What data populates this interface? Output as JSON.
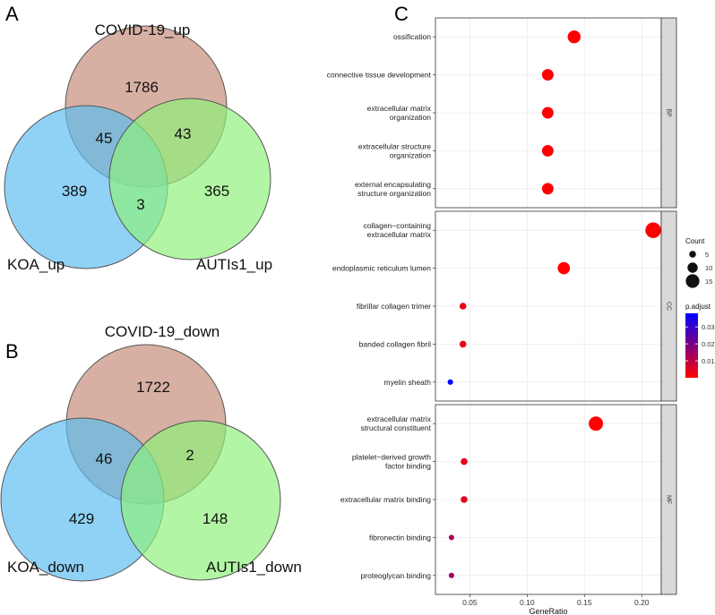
{
  "panels": {
    "a": "A",
    "b": "B",
    "c": "C"
  },
  "venn_a": {
    "sets": {
      "top": "COVID-19_up",
      "left": "KOA_up",
      "right": "AUTIs1_up"
    },
    "regions": {
      "top_only": "1786",
      "top_left": "45",
      "top_right": "43",
      "left_only": "389",
      "center": "3",
      "right_only": "365"
    },
    "colors": {
      "top": "#c48a78",
      "left": "#5bbcf0",
      "right": "#8ef27a"
    }
  },
  "venn_b": {
    "sets": {
      "top": "COVID-19_down",
      "left": "KOA_down",
      "right": "AUTIs1_down"
    },
    "regions": {
      "top_only": "1722",
      "top_left": "46",
      "top_right": "2",
      "left_only": "429",
      "center": "",
      "right_only": "148"
    },
    "colors": {
      "top": "#c48a78",
      "left": "#5bbcf0",
      "right": "#8ef27a"
    }
  },
  "chart_data": {
    "type": "scatter",
    "title": "",
    "xlabel": "GeneRatio",
    "ylabel": "",
    "xlim": [
      0.02,
      0.217
    ],
    "xticks": [
      0.05,
      0.1,
      0.15,
      0.2
    ],
    "xtick_labels": [
      "0.05",
      "0.10",
      "0.15",
      "0.20"
    ],
    "facets": [
      {
        "name": "BP",
        "terms": [
          {
            "label": [
              "ossification"
            ],
            "x": 0.141,
            "count": 14,
            "p_adjust": 0.0
          },
          {
            "label": [
              "connective tissue development"
            ],
            "x": 0.118,
            "count": 12,
            "p_adjust": 0.0
          },
          {
            "label": [
              "extracellular matrix",
              "organization"
            ],
            "x": 0.118,
            "count": 12,
            "p_adjust": 0.0
          },
          {
            "label": [
              "extracellular structure",
              "organization"
            ],
            "x": 0.118,
            "count": 12,
            "p_adjust": 0.0
          },
          {
            "label": [
              "external encapsulating",
              "structure organization"
            ],
            "x": 0.118,
            "count": 12,
            "p_adjust": 0.0
          }
        ]
      },
      {
        "name": "CC",
        "terms": [
          {
            "label": [
              "collagen−containing",
              "extracellular matrix"
            ],
            "x": 0.21,
            "count": 18,
            "p_adjust": 0.0
          },
          {
            "label": [
              "endoplasmic reticulum lumen"
            ],
            "x": 0.132,
            "count": 13,
            "p_adjust": 0.0
          },
          {
            "label": [
              "fibrillar collagen trimer"
            ],
            "x": 0.044,
            "count": 5,
            "p_adjust": 0.003
          },
          {
            "label": [
              "banded collagen fibril"
            ],
            "x": 0.044,
            "count": 5,
            "p_adjust": 0.003
          },
          {
            "label": [
              "myelin sheath"
            ],
            "x": 0.033,
            "count": 3,
            "p_adjust": 0.038
          }
        ]
      },
      {
        "name": "MF",
        "terms": [
          {
            "label": [
              "extracellular matrix",
              "structural constituent"
            ],
            "x": 0.16,
            "count": 16,
            "p_adjust": 0.0
          },
          {
            "label": [
              "platelet−derived growth",
              "factor binding"
            ],
            "x": 0.045,
            "count": 5,
            "p_adjust": 0.004
          },
          {
            "label": [
              "extracellular matrix binding"
            ],
            "x": 0.045,
            "count": 5,
            "p_adjust": 0.004
          },
          {
            "label": [
              "fibronectin binding"
            ],
            "x": 0.034,
            "count": 3,
            "p_adjust": 0.012
          },
          {
            "label": [
              "proteoglycan binding"
            ],
            "x": 0.034,
            "count": 3,
            "p_adjust": 0.014
          }
        ]
      }
    ],
    "legend_count": {
      "title": "Count",
      "values": [
        5,
        10,
        15
      ],
      "labels": [
        "5",
        "10",
        "15"
      ]
    },
    "legend_padj": {
      "title": "p.adjust",
      "ticks": [
        0.01,
        0.02,
        0.03
      ],
      "labels": [
        "0.01",
        "0.02",
        "0.03"
      ],
      "range": [
        0.0,
        0.038
      ],
      "low_color": "#ff0000",
      "high_color": "#0000ff"
    }
  }
}
